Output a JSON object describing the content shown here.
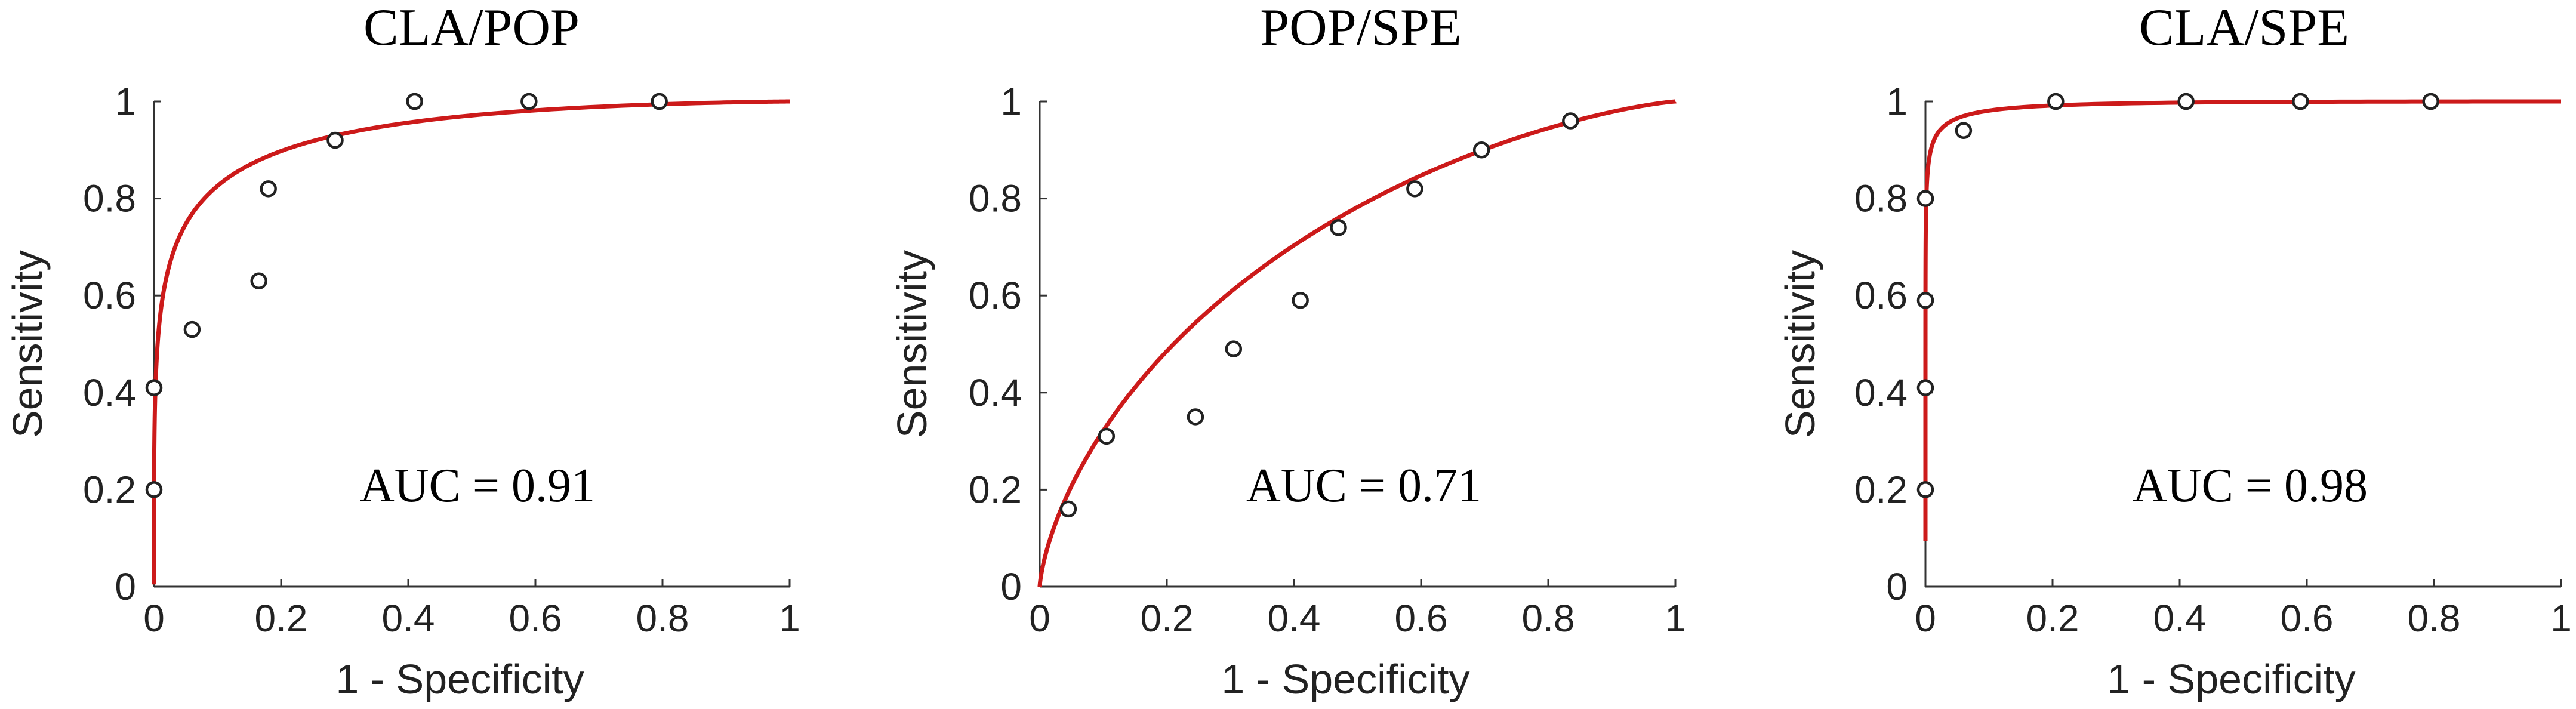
{
  "chart_data": [
    {
      "type": "scatter",
      "title": "CLA/POP",
      "xlabel": "1 - Specificity",
      "ylabel": "Sensitivity",
      "xlim": [
        0,
        1
      ],
      "ylim": [
        0,
        1
      ],
      "xticks": [
        "0",
        "0.2",
        "0.4",
        "0.6",
        "0.8",
        "1"
      ],
      "yticks": [
        "0",
        "0.2",
        "0.4",
        "0.6",
        "0.8",
        "1"
      ],
      "annotation": "AUC = 0.91",
      "points": {
        "x": [
          0.0,
          0.0,
          0.06,
          0.165,
          0.18,
          0.285,
          0.41,
          0.59,
          0.795
        ],
        "y": [
          0.2,
          0.41,
          0.53,
          0.63,
          0.82,
          0.92,
          1.0,
          1.0,
          1.0
        ]
      },
      "fit_curve": {
        "model": "binormal-roc",
        "a": 1.9,
        "b": 0.75,
        "color": "#cc1a1a"
      },
      "grid": false
    },
    {
      "type": "scatter",
      "title": "POP/SPE",
      "xlabel": "1 - Specificity",
      "ylabel": "Sensitivity",
      "xlim": [
        0,
        1
      ],
      "ylim": [
        0,
        1
      ],
      "xticks": [
        "0",
        "0.2",
        "0.4",
        "0.6",
        "0.8",
        "1"
      ],
      "yticks": [
        "0",
        "0.2",
        "0.4",
        "0.6",
        "0.8",
        "1"
      ],
      "annotation": "AUC = 0.71",
      "points": {
        "x": [
          0.045,
          0.105,
          0.245,
          0.305,
          0.41,
          0.47,
          0.59,
          0.695,
          0.835
        ],
        "y": [
          0.16,
          0.31,
          0.35,
          0.49,
          0.59,
          0.74,
          0.82,
          0.9,
          0.96
        ]
      },
      "fit_curve": {
        "model": "binormal-roc",
        "a": 0.78,
        "b": 0.97,
        "color": "#cc1a1a"
      },
      "grid": false
    },
    {
      "type": "scatter",
      "title": "CLA/SPE",
      "xlabel": "1 - Specificity",
      "ylabel": "Sensitivity",
      "xlim": [
        0,
        1
      ],
      "ylim": [
        0,
        1
      ],
      "xticks": [
        "0",
        "0.2",
        "0.4",
        "0.6",
        "0.8",
        "1"
      ],
      "yticks": [
        "0",
        "0.2",
        "0.4",
        "0.6",
        "0.8",
        "1"
      ],
      "annotation": "AUC = 0.98",
      "points": {
        "x": [
          0.0,
          0.0,
          0.0,
          0.0,
          0.06,
          0.205,
          0.41,
          0.59,
          0.795
        ],
        "y": [
          0.2,
          0.41,
          0.59,
          0.8,
          0.94,
          1.0,
          1.0,
          1.0,
          1.0
        ]
      },
      "fit_curve": {
        "model": "binormal-roc",
        "a": 3.0,
        "b": 0.72,
        "color": "#cc1a1a"
      },
      "grid": false
    }
  ]
}
